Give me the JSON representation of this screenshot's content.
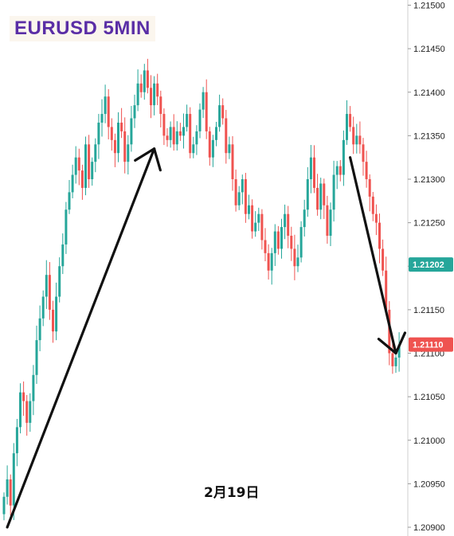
{
  "title": "EURUSD 5MIN",
  "date_label": "2月19日",
  "colors": {
    "up": "#26a69a",
    "down": "#ef5350",
    "title": "#5a2ea6",
    "title_bg": "#fbf6ee",
    "tag_green": "#26a69a",
    "tag_red": "#ef5350",
    "arrow": "#111111"
  },
  "chart_data": {
    "type": "candlestick",
    "symbol": "EURUSD",
    "timeframe": "5MIN",
    "ylim": [
      1.2089,
      1.2153
    ],
    "y_ticks": [
      "1.21500",
      "1.21450",
      "1.21400",
      "1.21350",
      "1.21300",
      "1.21250",
      "1.21200",
      "1.21150",
      "1.21100",
      "1.21050",
      "1.21000",
      "1.20950",
      "1.20900"
    ],
    "price_tags": [
      {
        "label": "1.21202",
        "value": 1.21202,
        "color": "green"
      },
      {
        "label": "1.21110",
        "value": 1.2111,
        "color": "red"
      }
    ],
    "annotations": [
      {
        "type": "arrow",
        "from": {
          "bar": 1,
          "price": 1.209
        },
        "to": {
          "bar": 46,
          "price": 1.21335
        }
      },
      {
        "type": "arrow",
        "from": {
          "bar": 106,
          "price": 1.21325
        },
        "to": {
          "bar": 120,
          "price": 1.211
        }
      }
    ],
    "closes": [
      1.20935,
      1.20955,
      1.20925,
      1.20985,
      1.21015,
      1.21055,
      1.21045,
      1.2102,
      1.21045,
      1.21075,
      1.21115,
      1.2114,
      1.21165,
      1.2119,
      1.2115,
      1.21125,
      1.21165,
      1.212,
      1.21225,
      1.21265,
      1.21285,
      1.21305,
      1.21325,
      1.2131,
      1.2129,
      1.2134,
      1.213,
      1.2132,
      1.2134,
      1.21365,
      1.21375,
      1.21395,
      1.2136,
      1.21345,
      1.2133,
      1.21365,
      1.21355,
      1.2132,
      1.2134,
      1.2137,
      1.21385,
      1.2141,
      1.214,
      1.21425,
      1.21405,
      1.21385,
      1.2141,
      1.21395,
      1.21375,
      1.2135,
      1.21345,
      1.2136,
      1.2134,
      1.21355,
      1.2135,
      1.2136,
      1.21375,
      1.2133,
      1.2134,
      1.21355,
      1.2138,
      1.214,
      1.21355,
      1.21325,
      1.21345,
      1.2136,
      1.21385,
      1.2137,
      1.2133,
      1.2134,
      1.213,
      1.2127,
      1.21285,
      1.213,
      1.2126,
      1.2127,
      1.2124,
      1.2125,
      1.2126,
      1.2123,
      1.21215,
      1.21195,
      1.21215,
      1.2124,
      1.2122,
      1.21245,
      1.2126,
      1.21235,
      1.2122,
      1.212,
      1.2121,
      1.21245,
      1.21265,
      1.213,
      1.21325,
      1.2129,
      1.21265,
      1.21295,
      1.2127,
      1.21235,
      1.21265,
      1.21305,
      1.21315,
      1.21305,
      1.21345,
      1.21375,
      1.2136,
      1.2134,
      1.2135,
      1.2134,
      1.2132,
      1.213,
      1.2128,
      1.2126,
      1.2125,
      1.2122,
      1.21195,
      1.2115,
      1.211,
      1.21085,
      1.21095,
      1.2111
    ]
  }
}
